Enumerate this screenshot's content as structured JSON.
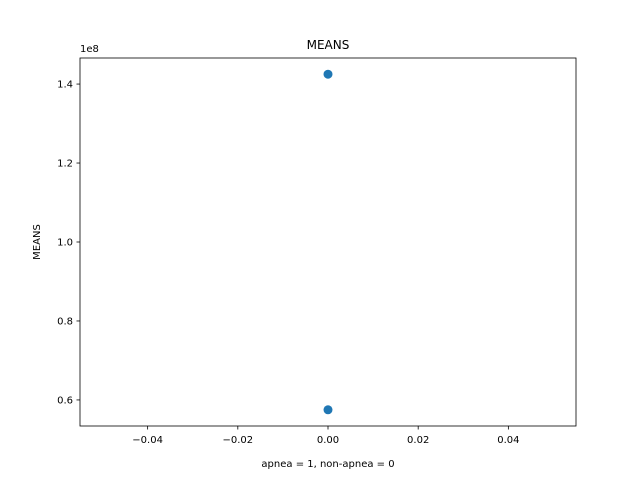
{
  "chart_data": {
    "type": "scatter",
    "title": "MEANS",
    "x_label": "apnea = 1, non-apnea = 0",
    "y_label": "MEANS",
    "y_offset_label": "1e8",
    "series": [
      {
        "color": "#1f77b4",
        "x": [
          0,
          0
        ],
        "values": [
          142500000,
          57500000
        ]
      }
    ],
    "xlim": [
      -0.055,
      0.055
    ],
    "xticks": [
      {
        "value": -0.04,
        "label": "−0.04"
      },
      {
        "value": -0.02,
        "label": "−0.02"
      },
      {
        "value": 0,
        "label": "0.00"
      },
      {
        "value": 0.02,
        "label": "0.02"
      },
      {
        "value": 0.04,
        "label": "0.04"
      }
    ],
    "ylim": [
      53400000,
      146600000
    ],
    "yticks": [
      {
        "value": 60000000,
        "label": "0.6"
      },
      {
        "value": 80000000,
        "label": "0.8"
      },
      {
        "value": 100000000,
        "label": "1.0"
      },
      {
        "value": 120000000,
        "label": "1.2"
      },
      {
        "value": 140000000,
        "label": "1.4"
      }
    ],
    "grid": false
  }
}
